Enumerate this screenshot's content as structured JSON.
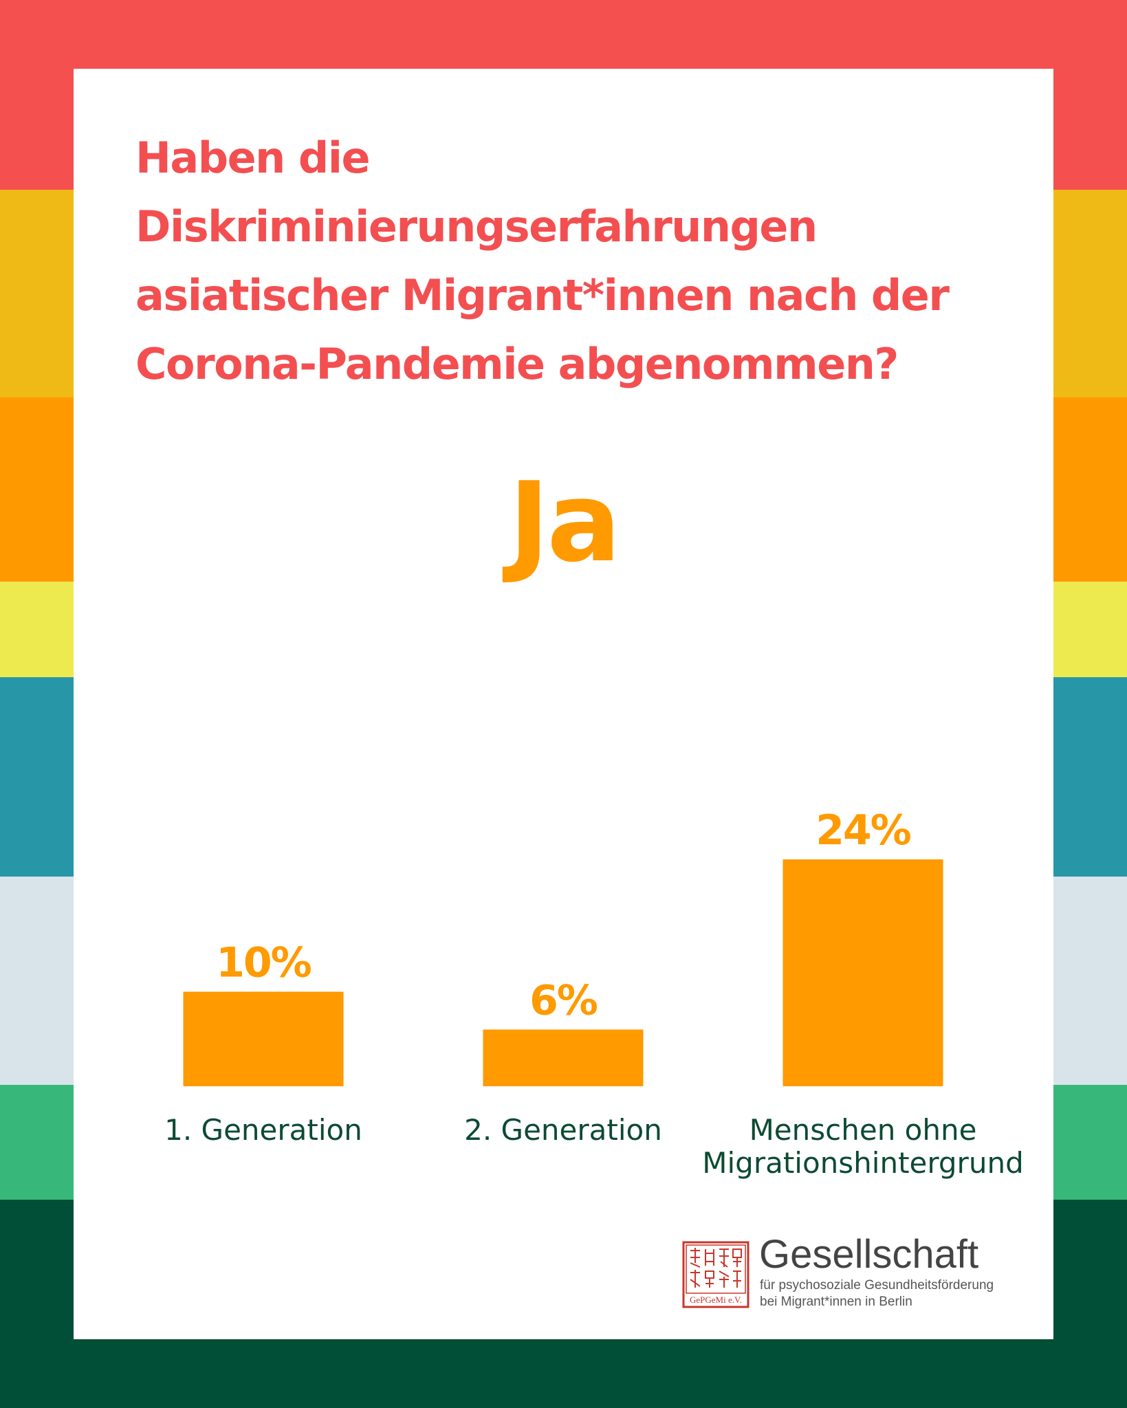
{
  "colors": {
    "stripes": [
      "#f4504f",
      "#f0ba16",
      "#ff9900",
      "#ecea4f",
      "#2796a7",
      "#d9e4ea",
      "#38b77a",
      "#014f36"
    ],
    "title": "#f34f51",
    "bars": "#ff9a00",
    "category_labels": "#0d4a33",
    "logo_red": "#c8352b"
  },
  "title": "Haben die Diskriminierungserfahrungen asiatischer Migrant*innen nach der Corona-Pandemie abgenommen?",
  "subtitle": "Ja",
  "chart_data": {
    "type": "bar",
    "title": "Haben die Diskriminierungserfahrungen asiatischer Migrant*innen nach der Corona-Pandemie abgenommen?",
    "subtitle": "Ja",
    "categories": [
      "1. Generation",
      "2. Generation",
      "Menschen ohne Migrationshintergrund"
    ],
    "values": [
      10,
      6,
      24
    ],
    "value_labels": [
      "10%",
      "6%",
      "24%"
    ],
    "unit": "%",
    "xlabel": "",
    "ylabel": "",
    "ylim": [
      0,
      24
    ],
    "grid": false,
    "legend": "none"
  },
  "logo": {
    "name": "Gesellschaft",
    "line1": "für psychosoziale Gesundheitsförderung",
    "line2": "bei Migrant*innen in Berlin",
    "seal_text": "GePGeMi e.V."
  }
}
